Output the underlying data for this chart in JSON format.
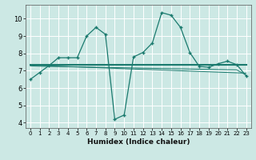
{
  "xlabel": "Humidex (Indice chaleur)",
  "bg_color": "#cce8e4",
  "grid_color": "#ffffff",
  "line_color": "#1a7a6e",
  "xlim": [
    -0.5,
    23.5
  ],
  "ylim": [
    3.7,
    10.8
  ],
  "yticks": [
    4,
    5,
    6,
    7,
    8,
    9,
    10
  ],
  "xticks": [
    0,
    1,
    2,
    3,
    4,
    5,
    6,
    7,
    8,
    9,
    10,
    11,
    12,
    13,
    14,
    15,
    16,
    17,
    18,
    19,
    20,
    21,
    22,
    23
  ],
  "series": [
    [
      6.5,
      6.9,
      7.3,
      7.75,
      7.75,
      7.75,
      9.0,
      9.5,
      9.1,
      4.2,
      4.45,
      7.8,
      8.05,
      8.6,
      10.35,
      10.2,
      9.5,
      8.05,
      7.25,
      7.2,
      7.4,
      7.55,
      7.35,
      6.7
    ],
    [
      7.35,
      7.35,
      7.35,
      7.35,
      7.35,
      7.35,
      7.35,
      7.35,
      7.35,
      7.35,
      7.35,
      7.35,
      7.35,
      7.35,
      7.35,
      7.35,
      7.35,
      7.35,
      7.35,
      7.35,
      7.35,
      7.35,
      7.35,
      7.35
    ],
    [
      7.32,
      7.3,
      7.28,
      7.26,
      7.24,
      7.22,
      7.2,
      7.18,
      7.16,
      7.14,
      7.12,
      7.1,
      7.08,
      7.06,
      7.04,
      7.02,
      7.0,
      6.98,
      6.96,
      6.94,
      6.92,
      6.9,
      6.88,
      6.86
    ],
    [
      7.28,
      7.26,
      7.25,
      7.24,
      7.23,
      7.22,
      7.21,
      7.2,
      7.19,
      7.18,
      7.17,
      7.16,
      7.15,
      7.14,
      7.13,
      7.12,
      7.11,
      7.1,
      7.09,
      7.08,
      7.07,
      7.06,
      7.05,
      6.75
    ]
  ],
  "marker_indices": [
    0,
    1,
    2,
    3,
    4,
    5,
    6,
    7,
    8,
    9,
    10,
    11,
    12,
    13,
    14,
    15,
    16,
    17,
    18,
    19,
    20,
    21,
    22,
    23
  ]
}
